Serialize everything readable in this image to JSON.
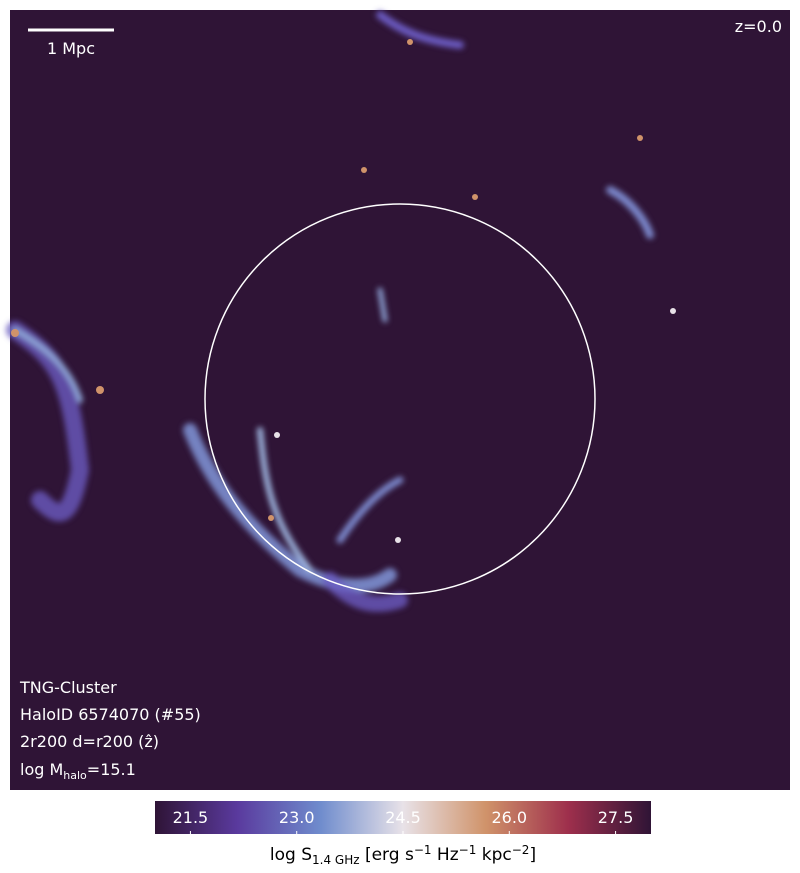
{
  "chart_data": {
    "type": "image",
    "scale_bar_label": "1 Mpc",
    "redshift_label": "z=0.0",
    "info_lines": [
      "TNG-Cluster",
      "HaloID 6574070 (#55)",
      "2r200 d=r200 (ẑ)"
    ],
    "mass_label": [
      "log M",
      "halo",
      "=15.1"
    ],
    "colorbar": {
      "label": [
        "log S",
        "1.4 GHz",
        " [erg s",
        "−1",
        " Hz",
        "−1",
        " kpc",
        "−2",
        "]"
      ],
      "clim": [
        21,
        28
      ],
      "ticks": [
        21.5,
        {
          "value": 23,
          "label": "23.0"
        },
        24.5,
        {
          "value": 26,
          "label": "26.0"
        },
        27.5
      ],
      "colors": [
        "#2f1436",
        "#5a3a9e",
        "#6f8ccd",
        "#e8e2e8",
        "#d0936a",
        "#9e2f4c",
        "#2f1436"
      ]
    }
  }
}
